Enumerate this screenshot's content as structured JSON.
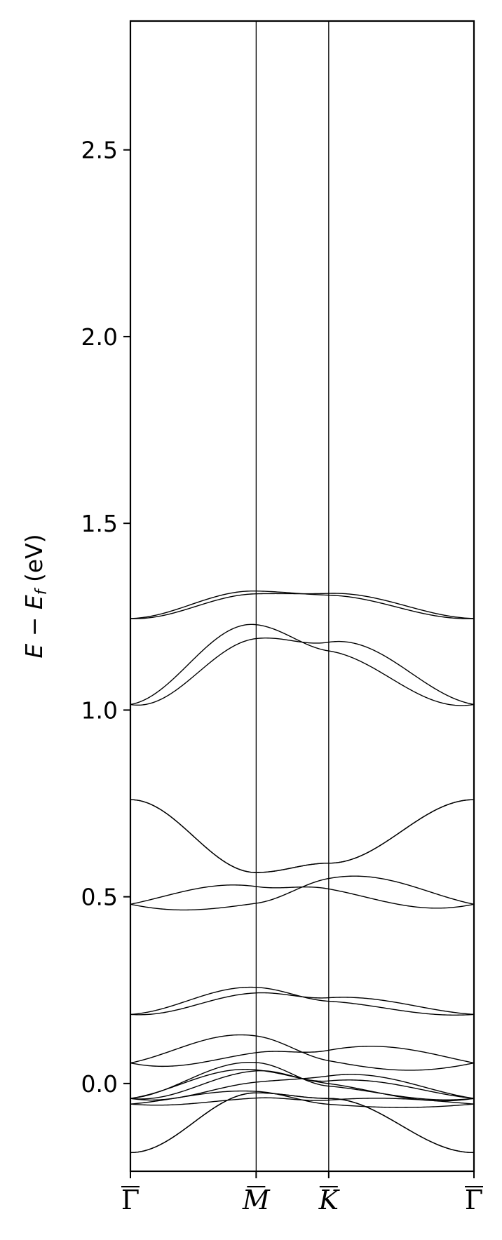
{
  "chart_data": {
    "type": "line",
    "title": "",
    "ylabel": "E − E_f (eV)",
    "ylabel_parts": {
      "E": "E",
      "minus": " − ",
      "Ef": "E",
      "sub": "f",
      "unit": " (eV)"
    },
    "xlabel": "",
    "ylim": [
      -0.235,
      2.845
    ],
    "yticks": [
      "0.0",
      "0.5",
      "1.0",
      "1.5",
      "2.0",
      "2.5"
    ],
    "ytick_values": [
      0.0,
      0.5,
      1.0,
      1.5,
      2.0,
      2.5
    ],
    "kpoints": [
      {
        "label": "Γ",
        "x": 0.0
      },
      {
        "label": "M",
        "x": 1.0
      },
      {
        "label": "K",
        "x": 1.577
      },
      {
        "label": "Γ",
        "x": 2.732
      }
    ],
    "grid": false,
    "line_color": "#000000",
    "band_pairs": [
      {
        "G": -0.185,
        "M": -0.025,
        "K": -0.04,
        "split": 0.0
      },
      {
        "G": -0.055,
        "M": -0.03,
        "K": -0.05,
        "split": 0.012
      },
      {
        "G": -0.04,
        "M": 0.02,
        "K": 0.01,
        "split": 0.022
      },
      {
        "G": -0.04,
        "M": 0.045,
        "K": 0.0,
        "split": 0.015
      },
      {
        "G": 0.055,
        "M": 0.105,
        "K": 0.075,
        "split": 0.03
      },
      {
        "G": 0.185,
        "M": 0.25,
        "K": 0.225,
        "split": 0.01
      },
      {
        "G": 0.48,
        "M": 0.505,
        "K": 0.535,
        "split": 0.03
      },
      {
        "G": 0.76,
        "M": 0.565,
        "K": 0.59,
        "split": 0.0
      },
      {
        "G": 1.015,
        "M": 1.21,
        "K": 1.17,
        "split": 0.025
      },
      {
        "G": 1.245,
        "M": 1.315,
        "K": 1.31,
        "split": 0.005
      }
    ]
  }
}
